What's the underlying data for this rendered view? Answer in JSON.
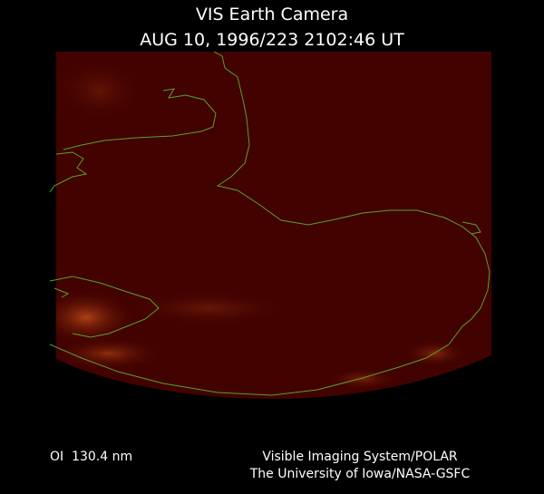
{
  "header": {
    "title": "VIS Earth Camera",
    "timestamp": "AUG 10, 1996/223 2102:46 UT"
  },
  "footer": {
    "filter": "OI  130.4 nm",
    "instrument": "Visible Imaging System/POLAR",
    "institution": "The University of Iowa/NASA-GSFC"
  }
}
